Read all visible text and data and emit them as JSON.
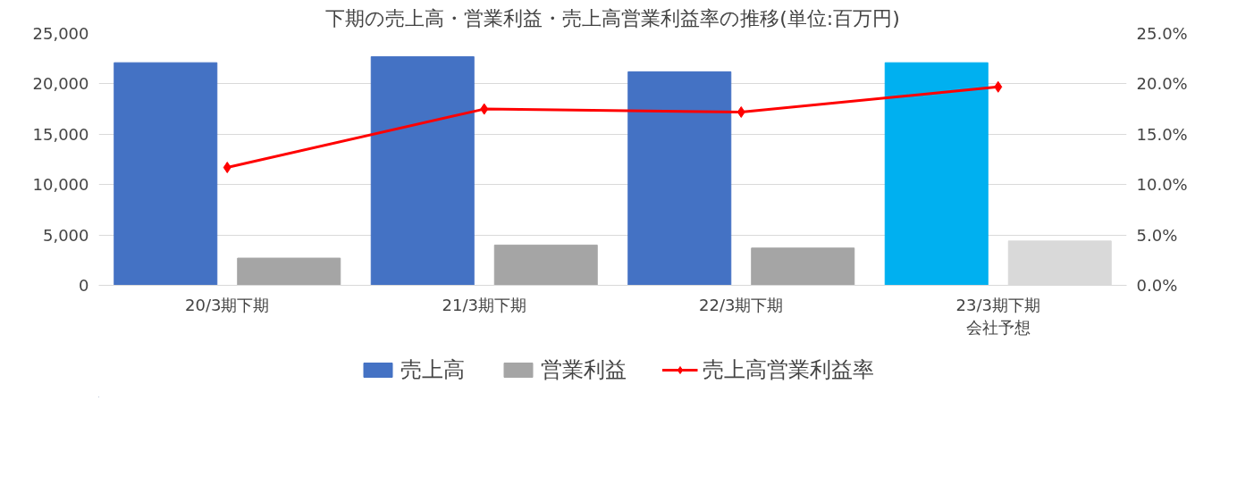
{
  "chart_data": {
    "type": "bar",
    "title": "下期の売上高・営業利益・売上高営業利益率の推移(単位:百万円)",
    "categories": [
      "20/3期下期",
      "21/3期下期",
      "22/3期下期",
      "23/3期下期会社予想"
    ],
    "series": [
      {
        "name": "売上高",
        "colors": [
          "#4472c4",
          "#4472c4",
          "#4472c4",
          "#00b0f0"
        ],
        "values": [
          22100,
          22700,
          21200,
          22100
        ]
      },
      {
        "name": "営業利益",
        "colors": [
          "#a5a5a5",
          "#a5a5a5",
          "#a5a5a5",
          "#d9d9d9"
        ],
        "values": [
          2700,
          4000,
          3700,
          4400
        ]
      },
      {
        "name": "売上高営業利益率",
        "type": "line",
        "axis": "y2",
        "color": "#ff0000",
        "marker": "diamond",
        "values": [
          11.7,
          17.5,
          17.2,
          19.7
        ]
      }
    ],
    "ylim": [
      0,
      25000
    ],
    "yticks": [
      {
        "value": 0,
        "label": "0"
      },
      {
        "value": 5000,
        "label": "5,000"
      },
      {
        "value": 10000,
        "label": "10,000"
      },
      {
        "value": 15000,
        "label": "15,000"
      },
      {
        "value": 20000,
        "label": "20,000"
      },
      {
        "value": 25000,
        "label": "25,000"
      }
    ],
    "y2lim": [
      0,
      25
    ],
    "y2ticks": [
      {
        "value": 0,
        "label": "0.0%"
      },
      {
        "value": 5,
        "label": "5.0%"
      },
      {
        "value": 10,
        "label": "10.0%"
      },
      {
        "value": 15,
        "label": "15.0%"
      },
      {
        "value": 20,
        "label": "20.0%"
      },
      {
        "value": 25,
        "label": "25.0%"
      }
    ],
    "grid": "y",
    "legend": "bottom"
  }
}
